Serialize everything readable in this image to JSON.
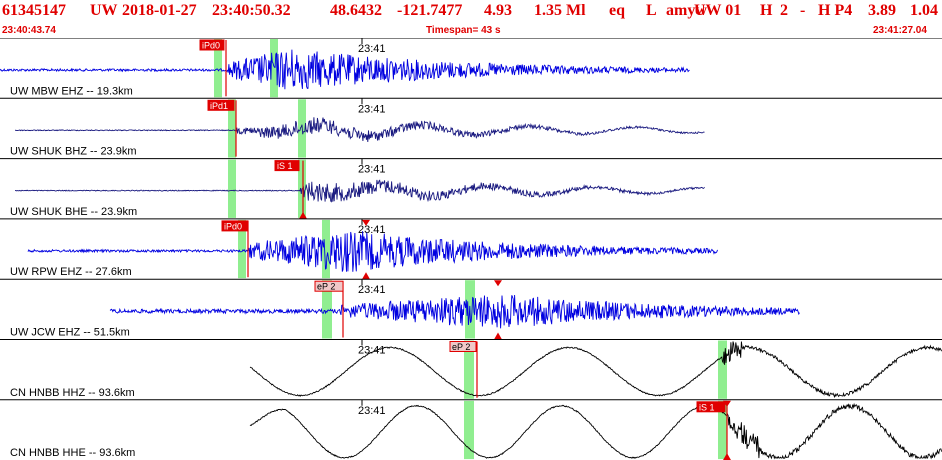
{
  "header": {
    "event_id": "61345147",
    "network": "UW",
    "date": "2018-01-27",
    "time": "23:40:50.32",
    "lat": "48.6432",
    "lon": "-121.7477",
    "depth": "4.93",
    "magnitude": "1.35 Ml",
    "event_type": "eq",
    "flag": "L",
    "author": "amyw",
    "source": "UW 01",
    "quality": "H",
    "count": "2",
    "dash": "-",
    "phase_info": "H P4",
    "value1": "3.89",
    "value2": "1.04"
  },
  "subheader": {
    "start_time": "23:40:43.74",
    "timespan": "Timespan=  43 s",
    "end_time": "23:41:27.04"
  },
  "time_tick_label": "23:41",
  "colors": {
    "header_text": "#e00000",
    "blue_trace": "#0000e0",
    "navy_trace": "#1a1a80",
    "black_trace": "#000000",
    "pick_box": "#e00000",
    "pick_window": "#90ee90"
  },
  "channels": [
    {
      "label": "UW MBW EHZ -- 19.3km",
      "color": "blue_trace",
      "picks": [
        {
          "text": "iPd0",
          "style": "solid"
        }
      ]
    },
    {
      "label": "UW SHUK BHZ -- 23.9km",
      "color": "navy_trace",
      "picks": [
        {
          "text": "iPd1",
          "style": "solid"
        }
      ]
    },
    {
      "label": "UW SHUK BHE -- 23.9km",
      "color": "navy_trace",
      "picks": [
        {
          "text": "iS 1",
          "style": "solid"
        }
      ]
    },
    {
      "label": "UW RPW EHZ -- 27.6km",
      "color": "blue_trace",
      "picks": [
        {
          "text": "iPd0",
          "style": "solid"
        }
      ]
    },
    {
      "label": "UW JCW EHZ -- 51.5km",
      "color": "blue_trace",
      "picks": [
        {
          "text": "eP 2",
          "style": "outline"
        }
      ]
    },
    {
      "label": "CN HNBB HHZ -- 93.6km",
      "color": "black_trace",
      "picks": [
        {
          "text": "eP 2",
          "style": "outline"
        }
      ]
    },
    {
      "label": "CN HNBB HHE -- 93.6km",
      "color": "black_trace",
      "picks": [
        {
          "text": "iS 1",
          "style": "solid"
        }
      ]
    }
  ]
}
